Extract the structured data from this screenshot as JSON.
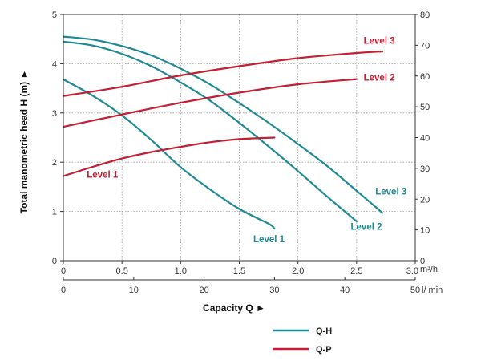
{
  "chart_data": {
    "type": "line",
    "ylabel": "Total manometric head H (m) ►",
    "y2label": "",
    "xlabel": "Capacity Q ►",
    "x_unit_top": "m³/h",
    "x_unit_bottom": "l/ min",
    "xlim": [
      0,
      3.0
    ],
    "ylim": [
      0,
      5
    ],
    "y2lim": [
      0,
      80
    ],
    "x_ticks": [
      "0",
      "0.5",
      "1.0",
      "1.5",
      "2.0",
      "2.5",
      "3.0"
    ],
    "x_ticks_values": [
      0,
      0.5,
      1.0,
      1.5,
      2.0,
      2.5,
      3.0
    ],
    "x2_ticks": [
      "0",
      "10",
      "20",
      "30",
      "40",
      "50"
    ],
    "x2_ticks_values": [
      0,
      10,
      20,
      30,
      40,
      50
    ],
    "y_ticks": [
      "0",
      "1",
      "2",
      "3",
      "4",
      "5"
    ],
    "y_ticks_values": [
      0,
      1,
      2,
      3,
      4,
      5
    ],
    "y2_ticks": [
      "0",
      "10",
      "20",
      "30",
      "40",
      "50",
      "60",
      "70",
      "80"
    ],
    "y2_ticks_values": [
      0,
      10,
      20,
      30,
      40,
      50,
      60,
      70,
      80
    ],
    "grid": true,
    "legend": [
      {
        "name": "Q-H",
        "color": "#1d8a93"
      },
      {
        "name": "Q-P",
        "color": "#c41e32"
      }
    ],
    "series": [
      {
        "name": "Q-H Level 1",
        "kind": "Q-H",
        "label": "Level 1",
        "color": "#1d8a93",
        "x": [
          0,
          0.25,
          0.5,
          0.75,
          1.0,
          1.25,
          1.5,
          1.75,
          1.8
        ],
        "y": [
          3.68,
          3.35,
          2.95,
          2.45,
          1.9,
          1.45,
          1.05,
          0.75,
          0.65
        ]
      },
      {
        "name": "Q-H Level 2",
        "kind": "Q-H",
        "label": "Level 2",
        "color": "#1d8a93",
        "x": [
          0,
          0.25,
          0.5,
          0.75,
          1.0,
          1.25,
          1.5,
          1.75,
          2.0,
          2.25,
          2.5
        ],
        "y": [
          4.45,
          4.37,
          4.2,
          3.95,
          3.62,
          3.25,
          2.8,
          2.32,
          1.82,
          1.3,
          0.8
        ]
      },
      {
        "name": "Q-H Level 3",
        "kind": "Q-H",
        "label": "Level 3",
        "color": "#1d8a93",
        "x": [
          0,
          0.25,
          0.5,
          0.75,
          1.0,
          1.25,
          1.5,
          1.75,
          2.0,
          2.25,
          2.5,
          2.72
        ],
        "y": [
          4.55,
          4.49,
          4.36,
          4.17,
          3.9,
          3.58,
          3.2,
          2.8,
          2.37,
          1.92,
          1.42,
          0.97
        ]
      },
      {
        "name": "Q-P Level 1",
        "kind": "Q-P",
        "label": "Level 1",
        "color": "#c41e32",
        "x": [
          0,
          0.25,
          0.5,
          0.75,
          1.0,
          1.25,
          1.5,
          1.8
        ],
        "y": [
          27.5,
          30.5,
          33.2,
          35.3,
          37.0,
          38.5,
          39.5,
          40.0
        ]
      },
      {
        "name": "Q-P Level 2",
        "kind": "Q-P",
        "label": "Level 2",
        "color": "#c41e32",
        "x": [
          0,
          0.5,
          1.0,
          1.5,
          2.0,
          2.5
        ],
        "y": [
          43.5,
          47.5,
          51.3,
          54.6,
          57.3,
          59.0
        ]
      },
      {
        "name": "Q-P Level 3",
        "kind": "Q-P",
        "label": "Level 3",
        "color": "#c41e32",
        "x": [
          0,
          0.5,
          1.0,
          1.5,
          2.0,
          2.5,
          2.72
        ],
        "y": [
          53.5,
          56.5,
          60.2,
          63.2,
          65.8,
          67.5,
          68.0
        ]
      }
    ],
    "annotations": [
      {
        "text": "Level 3",
        "color": "#c41e32",
        "x": 2.56,
        "y2": 70.5
      },
      {
        "text": "Level 2",
        "color": "#c41e32",
        "x": 2.56,
        "y2": 58.5
      },
      {
        "text": "Level 1",
        "color": "#c41e32",
        "x": 0.2,
        "y2": 27.0
      },
      {
        "text": "Level 3",
        "color": "#1d8a93",
        "x": 2.66,
        "y2": 21.5
      },
      {
        "text": "Level 2",
        "color": "#1d8a93",
        "x": 2.45,
        "y2": 10.0
      },
      {
        "text": "Level 1",
        "color": "#1d8a93",
        "x": 1.62,
        "y2": 6.0
      }
    ]
  }
}
